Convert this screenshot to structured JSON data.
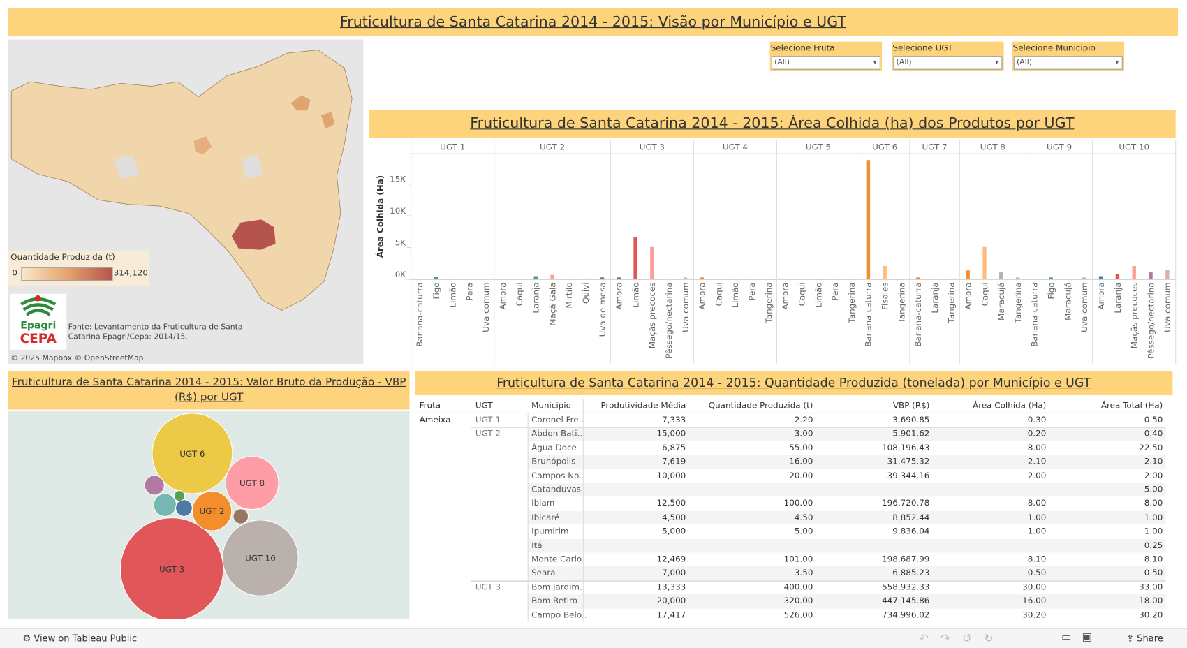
{
  "header": {
    "title": "Fruticultura de Santa Catarina 2014 - 2015: Visão por Município e UGT"
  },
  "filters": [
    {
      "label": "Selecione Fruta",
      "value": "(All)"
    },
    {
      "label": "Selecione UGT",
      "value": "(All)"
    },
    {
      "label": "Selecione Municipio",
      "value": "(All)"
    }
  ],
  "map": {
    "legend_title": "Quantidade Produzida (t)",
    "legend_min": "0",
    "legend_max": "314,120",
    "logo_top": "Epagri",
    "logo_bottom": "CEPA",
    "source": "Fonte: Levantamento da Fruticultura de Santa Catarina Epagri/Cepa: 2014/15.",
    "attribution": [
      "© 2025 Mapbox",
      "© OpenStreetMap"
    ]
  },
  "chart_data": [
    {
      "type": "bar",
      "title": "Fruticultura de Santa Catarina 2014 - 2015: Área Colhida (ha) dos Produtos por UGT",
      "y_label": "Área Colhida (Ha)",
      "ylim": [
        0,
        19800
      ],
      "yticks": [
        {
          "value": 0,
          "label": "0K"
        },
        {
          "value": 5000,
          "label": "5K"
        },
        {
          "value": 10000,
          "label": "10K"
        },
        {
          "value": 15000,
          "label": "15K"
        }
      ],
      "facets": [
        {
          "name": "UGT 1",
          "categories": [
            "Banana-caturra",
            "Figo",
            "Limão",
            "Pera",
            "Uva comum"
          ],
          "values": [
            50,
            350,
            40,
            20,
            60
          ],
          "colors": [
            "#f28e2b",
            "#499894",
            "#e15759",
            "#86bcb6",
            "#d4a6c8"
          ]
        },
        {
          "name": "UGT 2",
          "categories": [
            "Amora",
            "Caqui",
            "Laranja",
            "Maçã Gala",
            "Mirtilo",
            "Quivi",
            "Uva de mesa"
          ],
          "values": [
            80,
            60,
            500,
            700,
            60,
            120,
            300
          ],
          "colors": [
            "#f28e2b",
            "#ffbe7d",
            "#499894",
            "#ff9d9a",
            "#b07aa1",
            "#9d7660",
            "#4e79a7"
          ]
        },
        {
          "name": "UGT 3",
          "categories": [
            "Amora",
            "Limão",
            "Maçãs precoces",
            "Pêssego/nectarina",
            "Uva comum"
          ],
          "values": [
            300,
            6700,
            5100,
            100,
            300
          ],
          "colors": [
            "#4e79a7",
            "#e15759",
            "#ff9d9a",
            "#f1ce63",
            "#a0cbe8"
          ]
        },
        {
          "name": "UGT 4",
          "categories": [
            "Amora",
            "Caqui",
            "Limão",
            "Pera",
            "Tangerina"
          ],
          "values": [
            300,
            100,
            50,
            60,
            80
          ],
          "colors": [
            "#f28e2b",
            "#ffbe7d",
            "#4e79a7",
            "#b07aa1",
            "#e15759"
          ]
        },
        {
          "name": "UGT 5",
          "categories": [
            "Amora",
            "Caqui",
            "Limão",
            "Pera",
            "Tangerina"
          ],
          "values": [
            20,
            20,
            20,
            20,
            100
          ],
          "colors": [
            "#f28e2b",
            "#ffbe7d",
            "#4e79a7",
            "#b07aa1",
            "#9d7660"
          ]
        },
        {
          "name": "UGT 6",
          "categories": [
            "Banana-caturra",
            "Fisales",
            "Tangerina"
          ],
          "values": [
            18800,
            2100,
            100
          ],
          "colors": [
            "#f28e2b",
            "#ffbe7d",
            "#9d7660"
          ]
        },
        {
          "name": "UGT 7",
          "categories": [
            "Banana-caturra",
            "Laranja",
            "Tangerina"
          ],
          "values": [
            300,
            100,
            100
          ],
          "colors": [
            "#f28e2b",
            "#499894",
            "#9d7660"
          ]
        },
        {
          "name": "UGT 8",
          "categories": [
            "Amora",
            "Caqui",
            "Maracujá",
            "Tangerina"
          ],
          "values": [
            1400,
            5100,
            1100,
            300
          ],
          "colors": [
            "#f28e2b",
            "#ffbe7d",
            "#bab0ac",
            "#d4a6c8"
          ]
        },
        {
          "name": "UGT 9",
          "categories": [
            "Banana-caturra",
            "Figo",
            "Maracujá",
            "Uva comum"
          ],
          "values": [
            50,
            300,
            100,
            300
          ],
          "colors": [
            "#f28e2b",
            "#499894",
            "#bab0ac",
            "#d4a6c8"
          ]
        },
        {
          "name": "UGT 10",
          "categories": [
            "Amora",
            "Laranja",
            "Maçãs precoces",
            "Pêssego/nectarina",
            "Uva comum"
          ],
          "values": [
            500,
            800,
            2100,
            1100,
            1500
          ],
          "colors": [
            "#4e79a7",
            "#e15759",
            "#ff9d9a",
            "#b07aa1",
            "#d7b5a6"
          ]
        }
      ]
    },
    {
      "type": "bubble",
      "title": "Fruticultura de Santa Catarina 2014 - 2015: Valor Bruto da Produção - VBP (R$) por UGT",
      "labels": [
        "UGT 3",
        "UGT 10",
        "UGT 6",
        "UGT 8",
        "UGT 2",
        null,
        null,
        null,
        null,
        null
      ],
      "values": [
        4624,
        2500,
        2809,
        1225,
        676,
        169,
        225,
        121,
        49,
        100
      ],
      "colors": [
        "#e15759",
        "#bab0ac",
        "#edc948",
        "#ff9da7",
        "#f28e2b",
        "#b07aa1",
        "#76b7b2",
        "#4e79a7",
        "#59a14f",
        "#9c755f"
      ]
    }
  ],
  "table": {
    "title": "Fruticultura de Santa Catarina 2014 - 2015: Quantidade Produzida (tonelada) por Município e UGT",
    "columns": [
      "Fruta",
      "UGT",
      "Municipio",
      "Produtividade Média",
      "Quantidade Produzida (t)",
      "VBP (R$)",
      "Área Colhida (Ha)",
      "Área Total (Ha)"
    ],
    "rows": [
      [
        "Ameixa",
        "UGT 1",
        "Coronel Fre..",
        "7,333",
        "2.20",
        "3,690.85",
        "0.30",
        "0.50"
      ],
      [
        null,
        "UGT 2",
        "Abdon Bati..",
        "15,000",
        "3.00",
        "5,901.62",
        "0.20",
        "0.40"
      ],
      [
        null,
        null,
        "Água Doce",
        "6,875",
        "55.00",
        "108,196.43",
        "8.00",
        "22.50"
      ],
      [
        null,
        null,
        "Brunópolis",
        "7,619",
        "16.00",
        "31,475.32",
        "2.10",
        "2.10"
      ],
      [
        null,
        null,
        "Campos No..",
        "10,000",
        "20.00",
        "39,344.16",
        "2.00",
        "2.00"
      ],
      [
        null,
        null,
        "Catanduvas",
        null,
        null,
        null,
        null,
        "5.00"
      ],
      [
        null,
        null,
        "Ibiam",
        "12,500",
        "100.00",
        "196,720.78",
        "8.00",
        "8.00"
      ],
      [
        null,
        null,
        "Ibicaré",
        "4,500",
        "4.50",
        "8,852.44",
        "1.00",
        "1.00"
      ],
      [
        null,
        null,
        "Ipumirim",
        "5,000",
        "5.00",
        "9,836.04",
        "1.00",
        "1.00"
      ],
      [
        null,
        null,
        "Itá",
        null,
        null,
        null,
        null,
        "0.25"
      ],
      [
        null,
        null,
        "Monte Carlo",
        "12,469",
        "101.00",
        "198,687.99",
        "8.10",
        "8.10"
      ],
      [
        null,
        null,
        "Seara",
        "7,000",
        "3.50",
        "6,885.23",
        "0.50",
        "0.50"
      ],
      [
        null,
        "UGT 3",
        "Bom Jardim..",
        "13,333",
        "400.00",
        "558,932.33",
        "30.00",
        "33.00"
      ],
      [
        null,
        null,
        "Bom Retiro",
        "20,000",
        "320.00",
        "447,145.86",
        "16.00",
        "18.00"
      ],
      [
        null,
        null,
        "Campo Belo..",
        "17,417",
        "526.00",
        "734,996.02",
        "30.20",
        "30.20"
      ]
    ]
  },
  "footer": {
    "view": "View on Tableau Public",
    "share": "Share"
  }
}
